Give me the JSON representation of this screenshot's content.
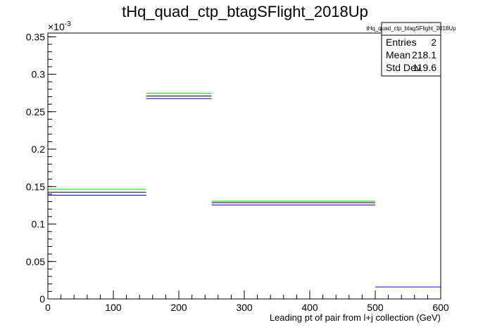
{
  "chart_data": {
    "type": "histogram",
    "title": "tHq_quad_ctp_btagSFlight_2018Up",
    "xlabel": "Leading pt of pair from l+j collection (GeV)",
    "ylabel": "",
    "y_exponent_label": "×10",
    "y_exponent_power": "-3",
    "xlim": [
      0,
      600
    ],
    "ylim": [
      0,
      0.355
    ],
    "x_ticks": [
      {
        "value": 0,
        "label": "0"
      },
      {
        "value": 100,
        "label": "100"
      },
      {
        "value": 200,
        "label": "200"
      },
      {
        "value": 300,
        "label": "300"
      },
      {
        "value": 400,
        "label": "400"
      },
      {
        "value": 500,
        "label": "500"
      },
      {
        "value": 600,
        "label": "600"
      }
    ],
    "y_ticks": [
      {
        "value": 0,
        "label": "0"
      },
      {
        "value": 0.05,
        "label": "0.05"
      },
      {
        "value": 0.1,
        "label": "0.1"
      },
      {
        "value": 0.15,
        "label": "0.15"
      },
      {
        "value": 0.2,
        "label": "0.2"
      },
      {
        "value": 0.25,
        "label": "0.25"
      },
      {
        "value": 0.3,
        "label": "0.3"
      },
      {
        "value": 0.35,
        "label": "0.35"
      }
    ],
    "bin_edges": [
      0,
      150,
      250,
      500,
      600
    ],
    "series": [
      {
        "color": "#000000",
        "values": [
          0.1425,
          0.271,
          0.1285,
          0.016
        ]
      },
      {
        "color": "#00cc00",
        "values": [
          0.1465,
          0.2745,
          0.1305,
          0.016
        ]
      },
      {
        "color": "#0000cc",
        "values": [
          0.1385,
          0.2675,
          0.1255,
          0.016
        ]
      }
    ],
    "grid": false,
    "legend": "none"
  },
  "stats": {
    "name": "tHq_quad_ctp_btagSFlight_2018Up",
    "rows": [
      {
        "label": "Entries",
        "value": "2"
      },
      {
        "label": "Mean",
        "value": "218.1"
      },
      {
        "label": "Std Dev",
        "value": "119.6"
      }
    ]
  }
}
